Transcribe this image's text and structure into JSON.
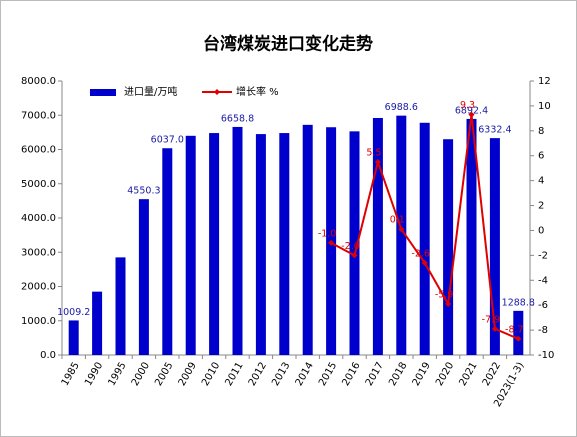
{
  "chart_data": {
    "type": "bar_line",
    "title": "台湾煤炭进口变化走势",
    "categories": [
      "1985",
      "1990",
      "1995",
      "2000",
      "2005",
      "2009",
      "2010",
      "2011",
      "2012",
      "2013",
      "2014",
      "2015",
      "2016",
      "2017",
      "2018",
      "2019",
      "2020",
      "2021",
      "2022",
      "2023(1-3)"
    ],
    "series": [
      {
        "name": "进口量/万吨",
        "color": "#0000cc",
        "type": "bar",
        "values": [
          1009.2,
          1850,
          2850,
          4550.3,
          6037.0,
          6400,
          6480,
          6658.8,
          6450,
          6480,
          6720,
          6650,
          6530,
          6920,
          6988.6,
          6780,
          6300,
          6892.4,
          6332.4,
          1288.8
        ],
        "value_labels": [
          "1009.2",
          null,
          null,
          "4550.3",
          "6037.0",
          null,
          null,
          "6658.8",
          null,
          null,
          null,
          null,
          null,
          null,
          "6988.6",
          null,
          null,
          "6892.4",
          "6332.4",
          "1288.8"
        ]
      },
      {
        "name": "增长率 %",
        "color": "#e00000",
        "type": "line",
        "axis": "y2",
        "values": [
          null,
          null,
          null,
          null,
          null,
          null,
          null,
          null,
          null,
          null,
          null,
          -1.0,
          -2.0,
          5.5,
          0.1,
          -2.6,
          -5.9,
          9.3,
          -7.9,
          -8.7
        ],
        "value_labels": [
          null,
          null,
          null,
          null,
          null,
          null,
          null,
          null,
          null,
          null,
          null,
          "-1.0",
          "-2.0",
          "5.5",
          "0.1",
          "-2.6",
          "-5.9",
          "9.3",
          "-7.9",
          "-8.7"
        ]
      }
    ],
    "ylim": [
      0,
      8000
    ],
    "yticks": [
      {
        "value": 0,
        "label": "0.0"
      },
      {
        "value": 1000,
        "label": "1000.0"
      },
      {
        "value": 2000,
        "label": "2000.0"
      },
      {
        "value": 3000,
        "label": "3000.0"
      },
      {
        "value": 4000,
        "label": "4000.0"
      },
      {
        "value": 5000,
        "label": "5000.0"
      },
      {
        "value": 6000,
        "label": "6000.0"
      },
      {
        "value": 7000,
        "label": "7000.0"
      },
      {
        "value": 8000,
        "label": "8000.0"
      }
    ],
    "y2lim": [
      -10,
      12
    ],
    "y2ticks": [
      -10,
      -8,
      -6,
      -4,
      -2,
      0,
      2,
      4,
      6,
      8,
      10,
      12
    ],
    "legend": "top-left"
  }
}
